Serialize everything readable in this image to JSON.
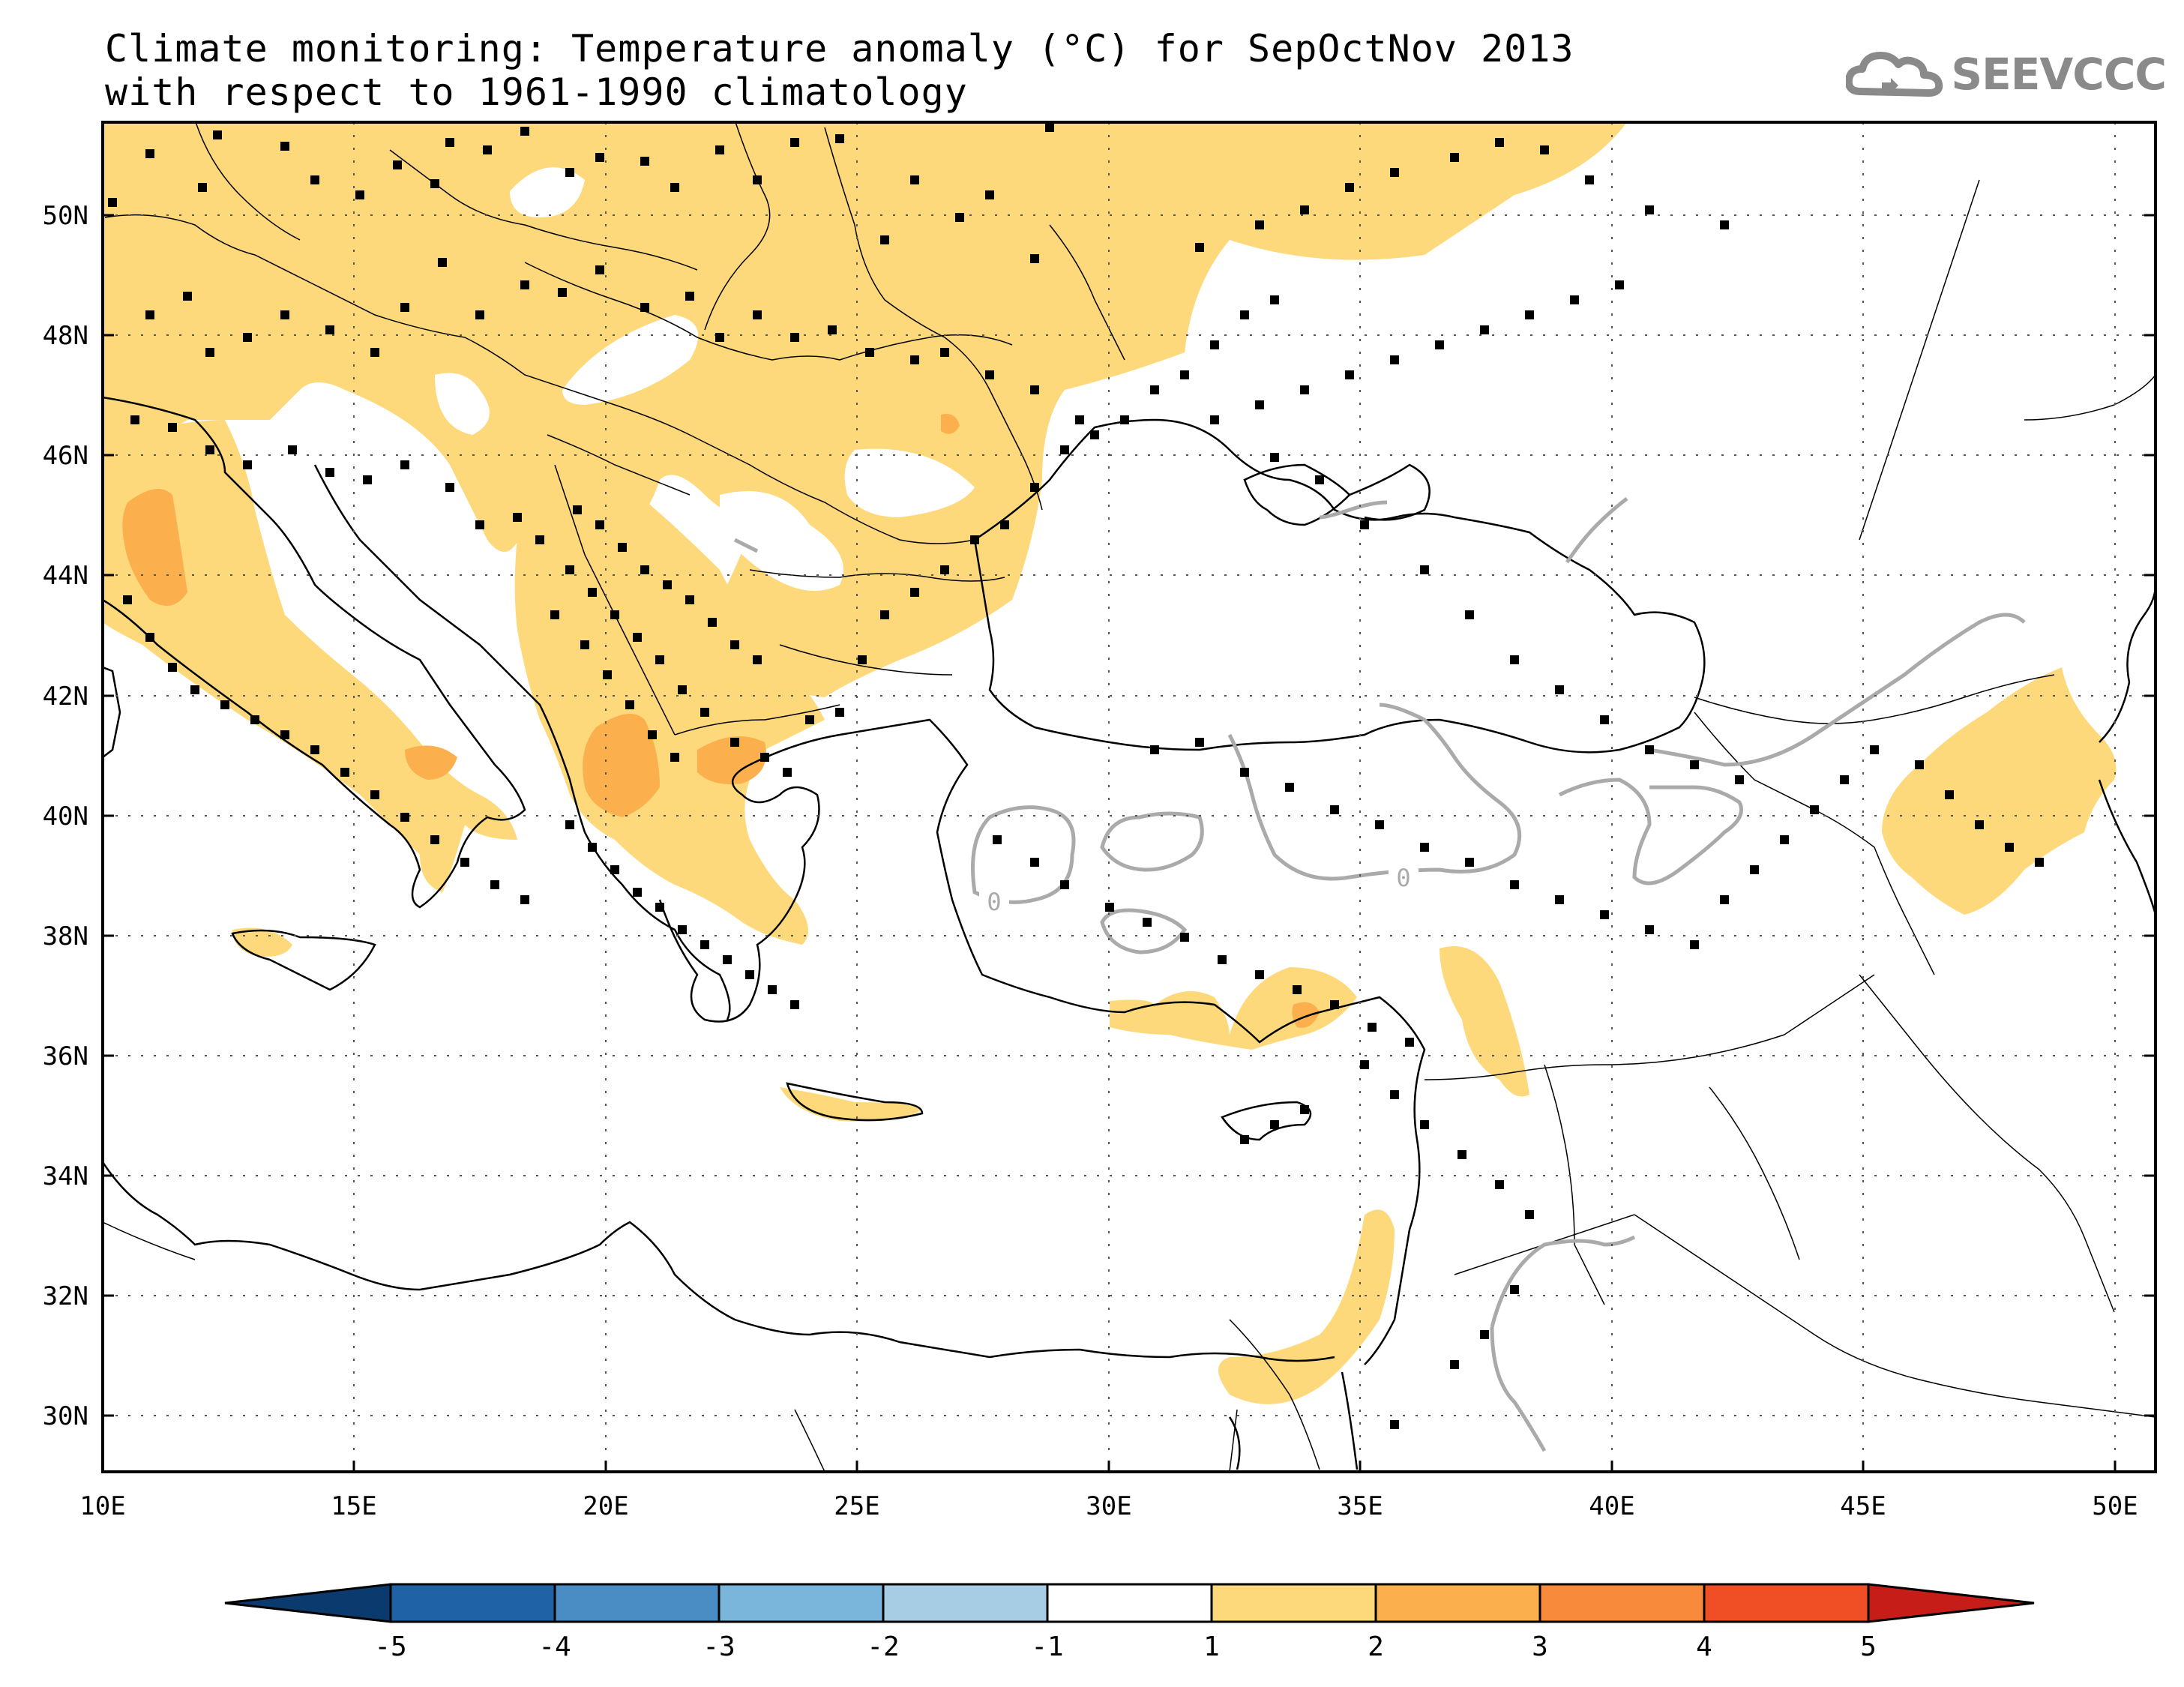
{
  "title": {
    "line1": "Climate monitoring: Temperature anomaly (°C) for SepOctNov 2013",
    "line2": "with respect to 1961-1990 climatology"
  },
  "logo": {
    "text": "SEEVCCC",
    "icon": "cloud-icon"
  },
  "map": {
    "longitude_labels": [
      "10E",
      "15E",
      "20E",
      "25E",
      "30E",
      "35E",
      "40E",
      "45E",
      "50E"
    ],
    "latitude_labels": [
      "50N",
      "48N",
      "46N",
      "44N",
      "42N",
      "40N",
      "38N",
      "36N",
      "34N",
      "32N",
      "30N"
    ],
    "contour_label": "0",
    "colors": {
      "anomaly_1_2": "#fdd97b",
      "anomaly_2_3": "#fbb04d",
      "station": "#000000",
      "contour": "#aaaaaa"
    }
  },
  "colorbar": {
    "labels": [
      "-5",
      "-4",
      "-3",
      "-2",
      "-1",
      "1",
      "2",
      "3",
      "4",
      "5"
    ],
    "colors": [
      "#0b3a6e",
      "#1f63a6",
      "#4a8dc4",
      "#7ab5db",
      "#a7cde4",
      "#ffffff",
      "#fdd97b",
      "#fbb04d",
      "#f78b3b",
      "#f04e25",
      "#c71d18"
    ]
  }
}
